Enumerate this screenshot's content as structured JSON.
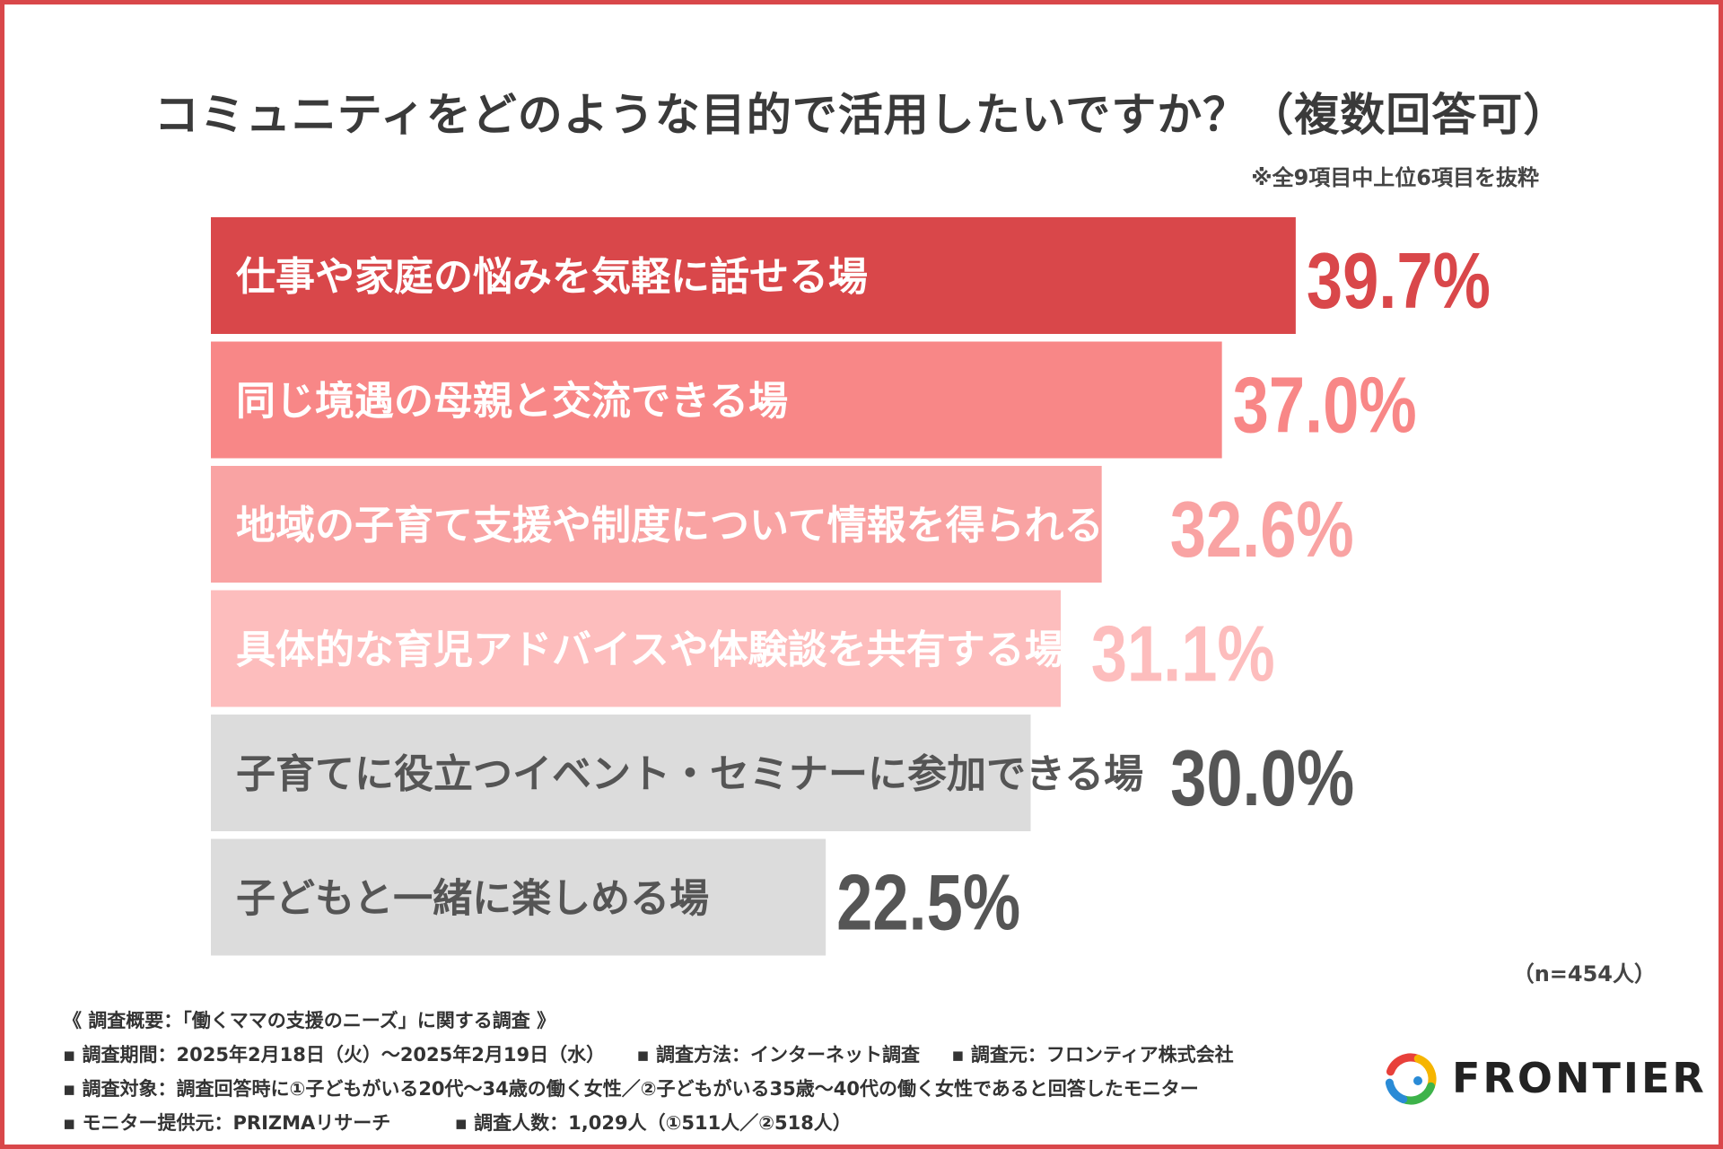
{
  "chart_data": {
    "type": "bar",
    "orientation": "horizontal",
    "title": "コミュニティをどのような目的で活用したいですか？（複数回答可）",
    "note": "※全9項目中上位6項目を抜粋",
    "sample_size": "（n=454人）",
    "categories": [
      "仕事や家庭の悩みを気軽に話せる場",
      "同じ境遇の母親と交流できる場",
      "地域の子育て支援や制度について情報を得られる場",
      "具体的な育児アドバイスや体験談を共有する場",
      "子育てに役立つイベント・セミナーに参加できる場",
      "子どもと一緒に楽しめる場"
    ],
    "values": [
      39.7,
      37.0,
      32.6,
      31.1,
      30.0,
      22.5
    ],
    "value_labels": [
      "39.7%",
      "37.0%",
      "32.6%",
      "31.1%",
      "30.0%",
      "22.5%"
    ],
    "bar_colors": [
      "#d9474a",
      "#f88787",
      "#f9a3a3",
      "#fdbdbd",
      "#dcdcdc",
      "#dcdcdc"
    ],
    "label_text_colors": [
      "#ffffff",
      "#ffffff",
      "#ffffff",
      "#ffffff",
      "#555555",
      "#555555"
    ],
    "value_colors": [
      "#d9474a",
      "#f88787",
      "#f9a3a3",
      "#fdbdbd",
      "#555555",
      "#555555"
    ]
  },
  "survey": {
    "heading": "《 調査概要：「働くママの支援のニーズ」に関する調査 》",
    "period": "▪ 調査期間：2025年2月18日（火）～2025年2月19日（水）",
    "method": "▪ 調査方法：インターネット調査",
    "conductor": "▪ 調査元：フロンティア株式会社",
    "target": "▪ 調査対象：調査回答時に①子どもがいる20代～34歳の働く女性／②子どもがいる35歳～40代の働く女性であると回答したモニター",
    "provider": "▪ モニター提供元：PRIZMAリサーチ",
    "respondents": "▪ 調査人数：1,029人（①511人／②518人）"
  },
  "logo": {
    "text": "FRONTIER",
    "colors": [
      "#e8403a",
      "#f6b500",
      "#3db34a",
      "#2a8bd6"
    ]
  }
}
